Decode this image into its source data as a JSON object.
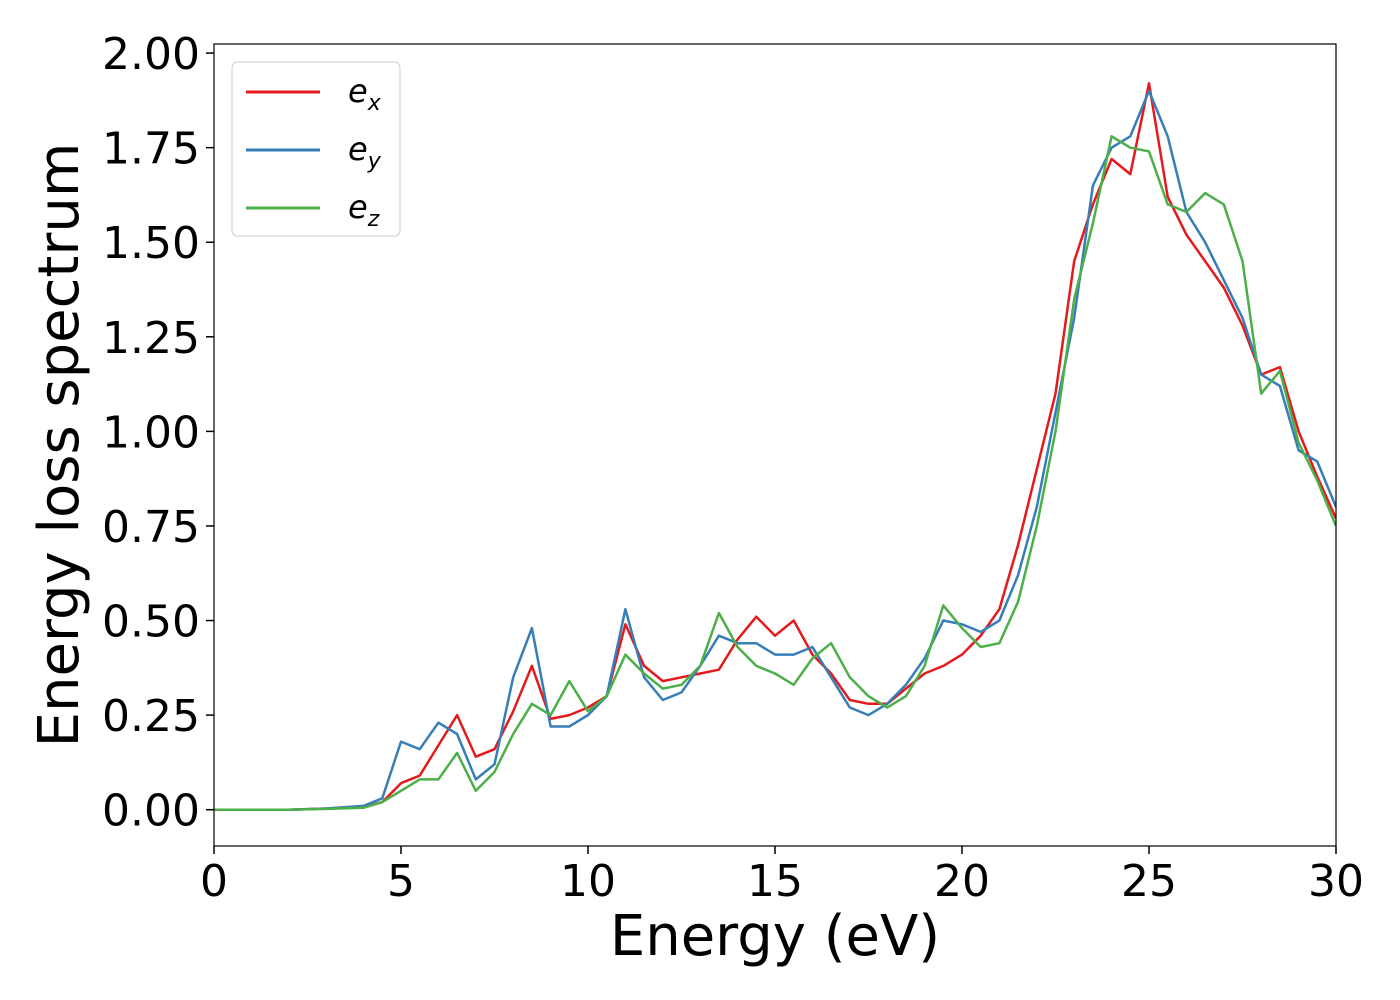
{
  "chart_data": {
    "type": "line",
    "x_label": "Energy (eV)",
    "y_label": "Energy loss spectrum",
    "x": [
      0,
      1,
      2,
      3,
      4,
      4.5,
      5,
      5.5,
      6,
      6.5,
      7,
      7.5,
      8,
      8.5,
      9,
      9.5,
      10,
      10.5,
      11,
      11.5,
      12,
      12.5,
      13,
      13.5,
      14,
      14.5,
      15,
      15.5,
      16,
      16.5,
      17,
      17.5,
      18,
      18.5,
      19,
      19.5,
      20,
      20.5,
      21,
      21.5,
      22,
      22.5,
      23,
      23.5,
      24,
      24.5,
      25,
      25.5,
      26,
      26.5,
      27,
      27.5,
      28,
      28.5,
      29,
      29.5,
      30
    ],
    "series": [
      {
        "name": "e_x",
        "color": "#e41a1c",
        "values": [
          0,
          0,
          0,
          0.003,
          0.008,
          0.02,
          0.07,
          0.09,
          0.17,
          0.25,
          0.14,
          0.16,
          0.26,
          0.38,
          0.24,
          0.25,
          0.27,
          0.3,
          0.49,
          0.38,
          0.34,
          0.35,
          0.36,
          0.37,
          0.45,
          0.51,
          0.46,
          0.5,
          0.41,
          0.36,
          0.29,
          0.28,
          0.28,
          0.32,
          0.36,
          0.38,
          0.41,
          0.46,
          0.53,
          0.7,
          0.9,
          1.1,
          1.45,
          1.6,
          1.72,
          1.68,
          1.92,
          1.62,
          1.52,
          1.45,
          1.38,
          1.28,
          1.15,
          1.17,
          1.0,
          0.88,
          0.77
        ]
      },
      {
        "name": "e_y",
        "color": "#377eb8",
        "values": [
          0,
          0,
          0,
          0.003,
          0.01,
          0.03,
          0.18,
          0.16,
          0.23,
          0.2,
          0.08,
          0.12,
          0.35,
          0.48,
          0.22,
          0.22,
          0.25,
          0.3,
          0.53,
          0.35,
          0.29,
          0.31,
          0.38,
          0.46,
          0.44,
          0.44,
          0.41,
          0.41,
          0.43,
          0.35,
          0.27,
          0.25,
          0.28,
          0.33,
          0.4,
          0.5,
          0.49,
          0.47,
          0.5,
          0.62,
          0.8,
          1.05,
          1.3,
          1.65,
          1.75,
          1.78,
          1.9,
          1.78,
          1.58,
          1.5,
          1.4,
          1.3,
          1.15,
          1.12,
          0.95,
          0.92,
          0.8
        ]
      },
      {
        "name": "e_z",
        "color": "#4daf4a",
        "values": [
          0,
          0,
          0,
          0.002,
          0.005,
          0.02,
          0.05,
          0.08,
          0.08,
          0.15,
          0.05,
          0.1,
          0.2,
          0.28,
          0.25,
          0.34,
          0.26,
          0.3,
          0.41,
          0.36,
          0.32,
          0.33,
          0.38,
          0.52,
          0.43,
          0.38,
          0.36,
          0.33,
          0.4,
          0.44,
          0.35,
          0.3,
          0.27,
          0.3,
          0.38,
          0.54,
          0.48,
          0.43,
          0.44,
          0.55,
          0.75,
          1.0,
          1.35,
          1.55,
          1.78,
          1.75,
          1.74,
          1.6,
          1.58,
          1.63,
          1.6,
          1.45,
          1.1,
          1.16,
          0.97,
          0.87,
          0.75
        ]
      }
    ],
    "xlim": [
      0,
      30
    ],
    "xticks": [
      0,
      5,
      10,
      15,
      20,
      25,
      30
    ],
    "ylim": [
      -0.096,
      2.024
    ],
    "yticks": [
      {
        "value": 0,
        "label": "0.00"
      },
      {
        "value": 0.25,
        "label": "0.25"
      },
      {
        "value": 0.5,
        "label": "0.50"
      },
      {
        "value": 0.75,
        "label": "0.75"
      },
      {
        "value": 1,
        "label": "1.00"
      },
      {
        "value": 1.25,
        "label": "1.25"
      },
      {
        "value": 1.5,
        "label": "1.50"
      },
      {
        "value": 1.75,
        "label": "1.75"
      },
      {
        "value": 2,
        "label": "2.00"
      }
    ],
    "legend": "upper left",
    "grid": false
  }
}
